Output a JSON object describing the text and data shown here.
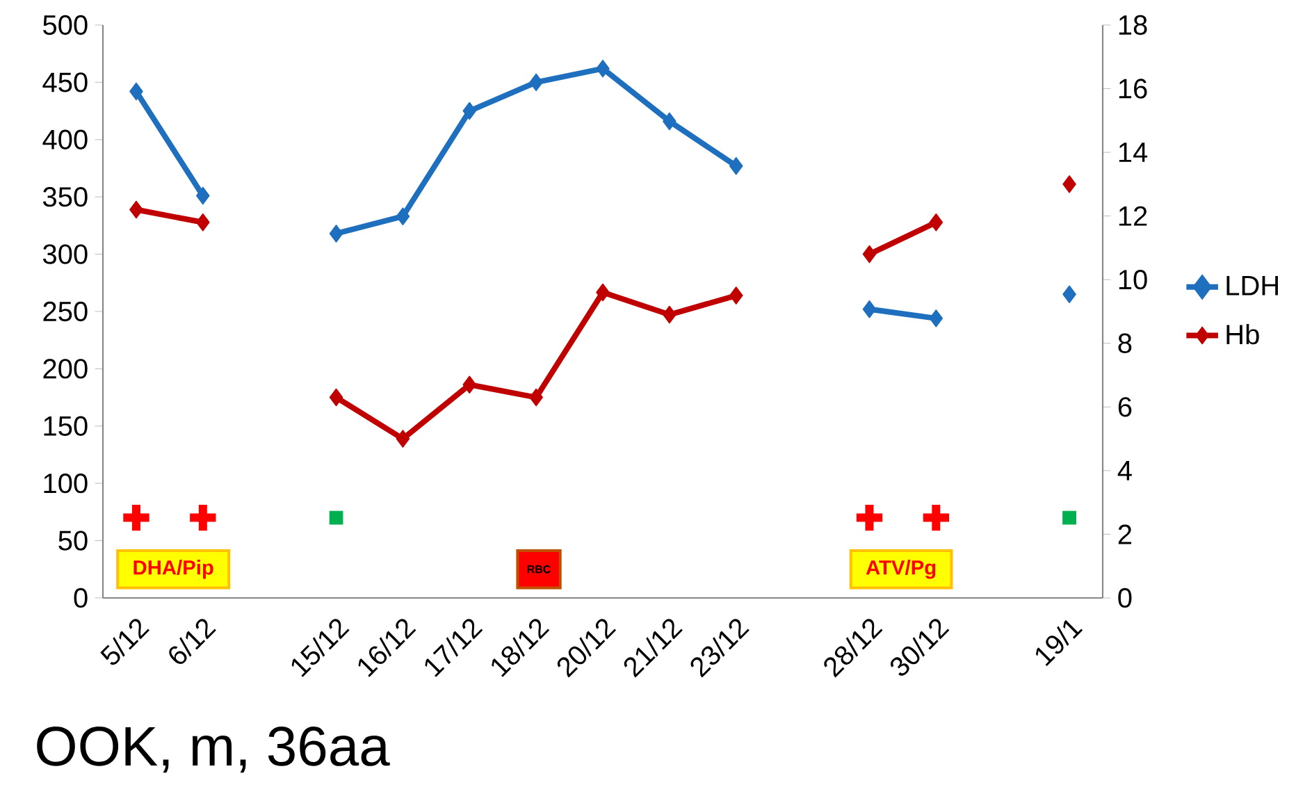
{
  "chart_data": {
    "type": "line",
    "categories": [
      "5/12",
      "6/12",
      null,
      "15/12",
      "16/12",
      "17/12",
      "18/12",
      "20/12",
      "21/12",
      "23/12",
      null,
      "28/12",
      "30/12",
      null,
      "19/1"
    ],
    "series": [
      {
        "name": "LDH",
        "color": "#1f6fbf",
        "marker": "diamond",
        "values": [
          442,
          351,
          null,
          318,
          333,
          425,
          450,
          462,
          416,
          377,
          null,
          252,
          244,
          null,
          265
        ]
      },
      {
        "name": "Hb",
        "color": "#c00000",
        "marker": "diamond",
        "axis": "y2",
        "values": [
          12.2,
          11.8,
          null,
          6.3,
          5.0,
          6.7,
          6.3,
          9.6,
          8.9,
          9.5,
          null,
          10.8,
          11.8,
          null,
          13.0
        ]
      },
      {
        "type": "scatter",
        "color": "#ff0000",
        "marker": "cross",
        "values": [
          70,
          70,
          null,
          null,
          null,
          null,
          null,
          null,
          null,
          null,
          null,
          70,
          70,
          null,
          null
        ]
      },
      {
        "type": "scatter",
        "color": "#00b050",
        "marker": "square",
        "values": [
          null,
          null,
          null,
          70,
          null,
          null,
          null,
          null,
          null,
          null,
          null,
          null,
          null,
          null,
          70
        ]
      }
    ],
    "ylim": [
      0,
      500
    ],
    "yticks": [
      0,
      50,
      100,
      150,
      200,
      250,
      300,
      350,
      400,
      450,
      500
    ],
    "y2lim": [
      0,
      18
    ],
    "y2ticks": [
      0,
      2,
      4,
      6,
      8,
      10,
      12,
      14,
      16,
      18
    ],
    "legend": "right",
    "grid": false,
    "line_style": "solid",
    "annotations": [
      "DHA/Pip",
      "RBC",
      "ATV/Pg",
      "OOK, m, 36aa"
    ]
  }
}
